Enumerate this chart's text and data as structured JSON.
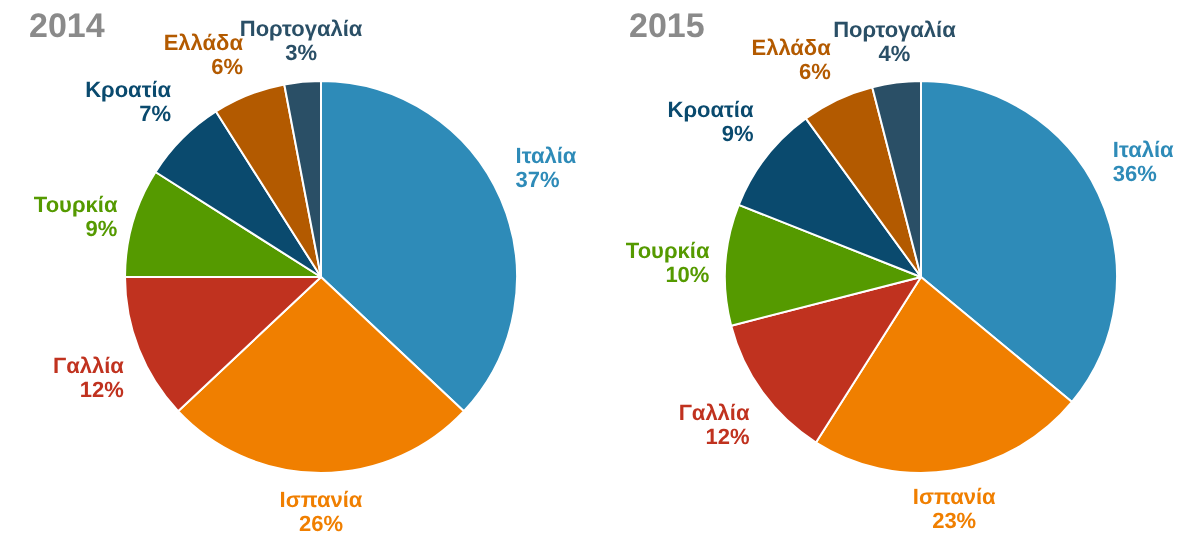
{
  "chart_data": [
    {
      "type": "pie",
      "title": "2014",
      "categories": [
        "Ιταλία",
        "Ισπανία",
        "Γαλλία",
        "Τουρκία",
        "Κροατία",
        "Ελλάδα",
        "Πορτογαλία"
      ],
      "values": [
        37,
        26,
        12,
        9,
        7,
        6,
        3
      ],
      "value_labels": [
        "37%",
        "26%",
        "12%",
        "9%",
        "7%",
        "6%",
        "3%"
      ],
      "colors": [
        "#2e8bb8",
        "#f07f00",
        "#c0321f",
        "#559a00",
        "#0a4a6e",
        "#b35a00",
        "#2a4f66"
      ]
    },
    {
      "type": "pie",
      "title": "2015",
      "categories": [
        "Ιταλία",
        "Ισπανία",
        "Γαλλία",
        "Τουρκία",
        "Κροατία",
        "Ελλάδα",
        "Πορτογαλία"
      ],
      "values": [
        36,
        23,
        12,
        10,
        9,
        6,
        4
      ],
      "value_labels": [
        "36%",
        "23%",
        "12%",
        "10%",
        "9%",
        "6%",
        "4%"
      ],
      "colors": [
        "#2e8bb8",
        "#f07f00",
        "#c0321f",
        "#559a00",
        "#0a4a6e",
        "#b35a00",
        "#2a4f66"
      ]
    }
  ]
}
